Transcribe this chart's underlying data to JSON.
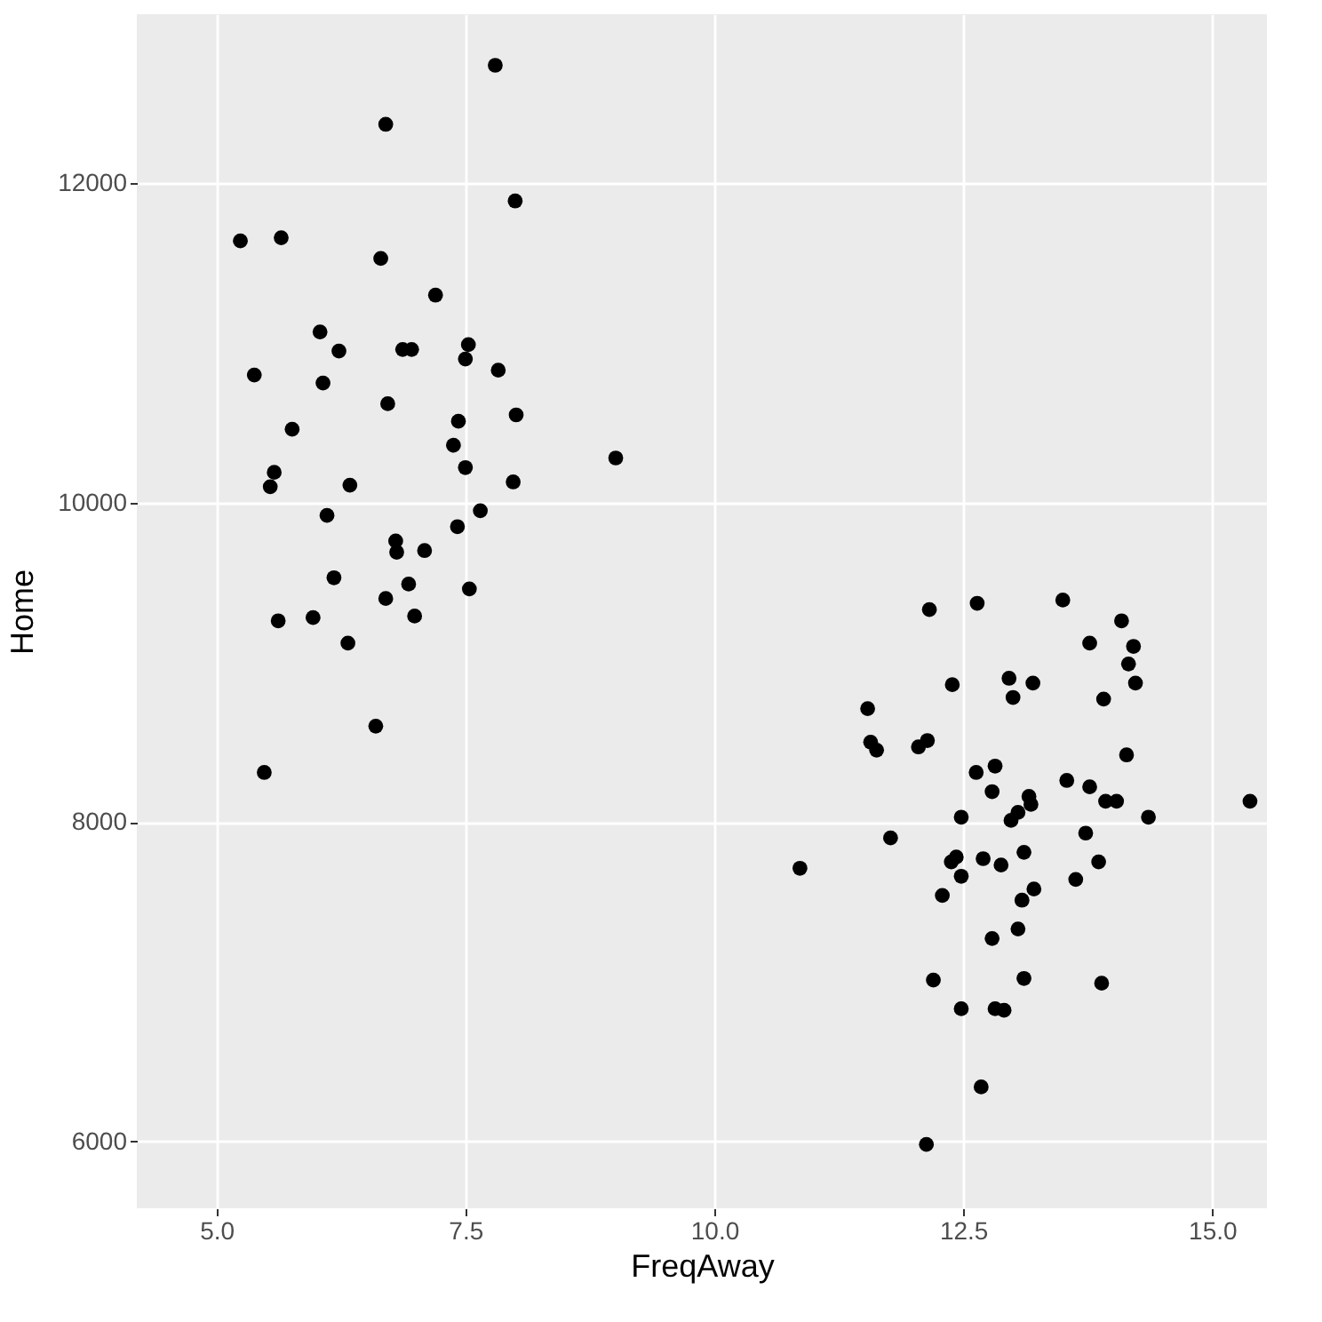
{
  "chart_data": {
    "type": "scatter",
    "xlabel": "FreqAway",
    "ylabel": "Home",
    "xlim": [
      4.2,
      15.55
    ],
    "ylim": [
      5580,
      13060
    ],
    "xticks": [
      {
        "value": 5,
        "label": "5.0"
      },
      {
        "value": 7.5,
        "label": "7.5"
      },
      {
        "value": 10,
        "label": "10.0"
      },
      {
        "value": 12.5,
        "label": "12.5"
      },
      {
        "value": 15,
        "label": "15.0"
      }
    ],
    "yticks": [
      6000,
      8000,
      10000,
      12000
    ],
    "grid": true,
    "marker": "circle",
    "series": [
      {
        "color": "#000000",
        "x": [
          7.8,
          6.7,
          8.0,
          5.24,
          5.65,
          6.65,
          7.2,
          6.04,
          6.23,
          6.87,
          6.96,
          7.53,
          7.5,
          7.83,
          5.38,
          6.07,
          6.72,
          8.01,
          5.76,
          7.43,
          7.38,
          7.5,
          9.01,
          5.58,
          5.54,
          6.34,
          7.98,
          7.65,
          6.11,
          7.42,
          6.8,
          6.81,
          7.09,
          6.18,
          6.93,
          7.54,
          6.7,
          5.62,
          5.97,
          6.99,
          6.32,
          6.6,
          5.48,
          12.16,
          12.64,
          13.5,
          14.09,
          13.77,
          14.21,
          14.16,
          14.23,
          13.91,
          12.39,
          12.96,
          13.2,
          13.0,
          11.54,
          11.57,
          11.63,
          12.05,
          12.14,
          14.14,
          12.63,
          12.82,
          12.79,
          13.54,
          13.77,
          13.93,
          14.04,
          14.36,
          15.38,
          13.16,
          13.18,
          13.05,
          12.98,
          12.48,
          13.73,
          11.77,
          10.86,
          12.43,
          12.38,
          12.7,
          12.88,
          13.11,
          13.86,
          12.48,
          13.63,
          13.21,
          13.09,
          12.29,
          13.05,
          12.79,
          12.2,
          13.11,
          13.89,
          12.48,
          12.82,
          12.91,
          12.68,
          12.13
        ],
        "values": [
          12740,
          12370,
          11890,
          11640,
          11660,
          11530,
          11300,
          11070,
          10950,
          10960,
          10960,
          10990,
          10900,
          10830,
          10800,
          10750,
          10620,
          10550,
          10460,
          10510,
          10360,
          10220,
          10280,
          10190,
          10100,
          10110,
          10130,
          9950,
          9920,
          9850,
          9760,
          9690,
          9700,
          9530,
          9490,
          9460,
          9400,
          9260,
          9280,
          9290,
          9120,
          8600,
          8310,
          9330,
          9370,
          9390,
          9260,
          9120,
          9100,
          8990,
          8870,
          8770,
          8860,
          8900,
          8870,
          8780,
          8710,
          8500,
          8450,
          8470,
          8510,
          8420,
          8310,
          8350,
          8190,
          8260,
          8220,
          8130,
          8130,
          8030,
          8130,
          8160,
          8110,
          8060,
          8010,
          8030,
          7930,
          7900,
          7710,
          7780,
          7750,
          7770,
          7730,
          7810,
          7750,
          7660,
          7640,
          7580,
          7510,
          7540,
          7330,
          7270,
          7010,
          7020,
          6990,
          6830,
          6830,
          6820,
          6340,
          5980
        ]
      }
    ]
  }
}
